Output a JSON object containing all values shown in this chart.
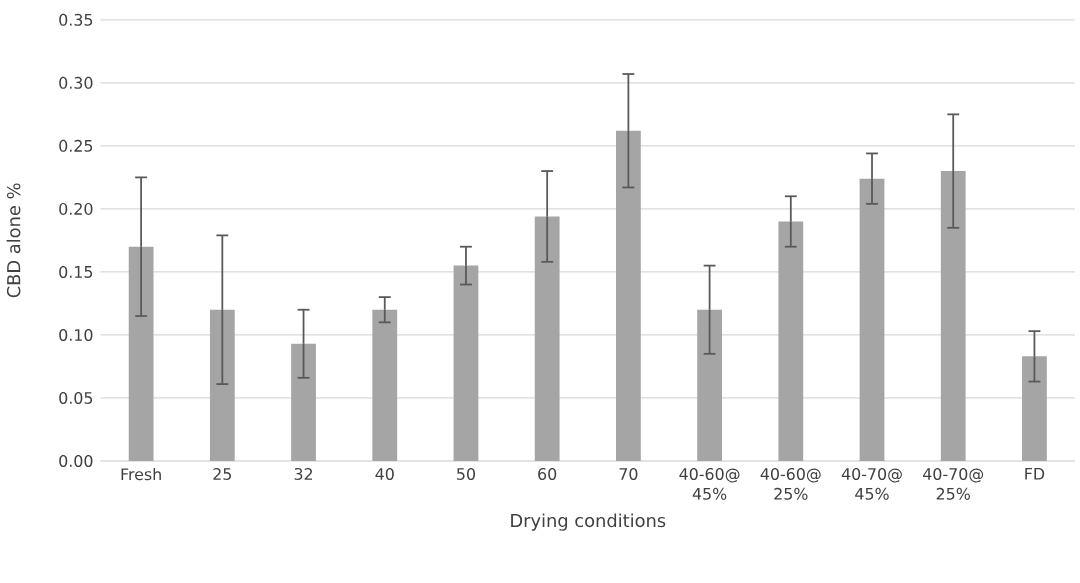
{
  "chart_data": {
    "type": "bar",
    "xlabel": "Drying conditions",
    "ylabel": "CBD alone %",
    "categories": [
      "Fresh",
      "25",
      "32",
      "40",
      "50",
      "60",
      "70",
      "40-60@ 45%",
      "40-60@ 25%",
      "40-70@ 45%",
      "40-70@ 25%",
      "FD"
    ],
    "values": [
      0.17,
      0.12,
      0.093,
      0.12,
      0.155,
      0.194,
      0.262,
      0.12,
      0.19,
      0.224,
      0.23,
      0.083
    ],
    "errors": [
      0.055,
      0.059,
      0.027,
      0.01,
      0.015,
      0.036,
      0.045,
      0.035,
      0.02,
      0.02,
      0.045,
      0.02
    ],
    "color": "#a5a5a5",
    "ylim": [
      0,
      0.35
    ],
    "yticks": [
      {
        "value": 0,
        "label": "0.00"
      },
      {
        "value": 0.05,
        "label": "0.05"
      },
      {
        "value": 0.1,
        "label": "0.10"
      },
      {
        "value": 0.15,
        "label": "0.15"
      },
      {
        "value": 0.2,
        "label": "0.20"
      },
      {
        "value": 0.25,
        "label": "0.25"
      },
      {
        "value": 0.3,
        "label": "0.30"
      },
      {
        "value": 0.35,
        "label": "0.35"
      }
    ],
    "grid": "y"
  }
}
